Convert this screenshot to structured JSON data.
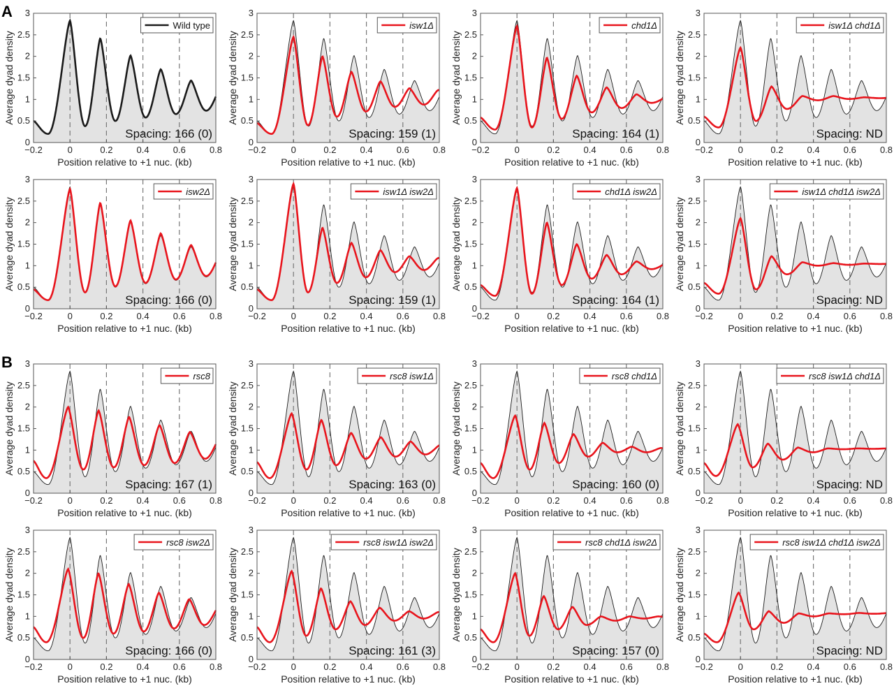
{
  "figure": {
    "letters": [
      "A",
      "B"
    ]
  },
  "chart_data": {
    "type": "line",
    "xlabel": "Position relative to +1 nuc. (kb)",
    "ylabel": "Average dyad density",
    "xlim": [
      -0.2,
      0.8
    ],
    "ylim": [
      0,
      3
    ],
    "xticks": [
      -0.2,
      0,
      0.2,
      0.4,
      0.6,
      0.8
    ],
    "xtick_labels": [
      "−0.2",
      "0",
      "0.2",
      "0.4",
      "0.6",
      "0.8"
    ],
    "yticks": [
      0,
      0.5,
      1,
      1.5,
      2,
      2.5,
      3
    ],
    "ytick_labels": [
      "0",
      "0.5",
      "1",
      "1.5",
      "2",
      "2.5",
      "3"
    ],
    "reference_lines_kb": [
      0,
      0.2,
      0.4,
      0.6
    ],
    "colors": {
      "wild_type": "#1a1a1a",
      "mutant": "#e8141c",
      "fill": "#e3e3e3"
    },
    "wild_type": {
      "label": "Wild type",
      "p0": 0,
      "spacing": 0.166,
      "start": 0.5,
      "min": 0.2,
      "peaks": [
        2.83,
        2.42,
        2.02,
        1.7,
        1.44,
        1.3
      ],
      "troughs": [
        0.38,
        0.5,
        0.58,
        0.66,
        0.74,
        0.8
      ]
    },
    "panels": [
      {
        "section": "A",
        "label": "Wild type",
        "spacing_text": "Spacing: 166 (0)",
        "wild_type_only": true
      },
      {
        "section": "A",
        "label": "isw1Δ",
        "spacing_text": "Spacing: 159 (1)",
        "p0": 0,
        "spacing": 0.159,
        "start": 0.45,
        "min": 0.2,
        "peaks": [
          2.45,
          2.0,
          1.64,
          1.42,
          1.26,
          1.22
        ],
        "troughs": [
          0.4,
          0.6,
          0.72,
          0.83,
          0.88,
          0.9
        ]
      },
      {
        "section": "A",
        "label": "chd1Δ",
        "spacing_text": "Spacing: 164 (1)",
        "p0": 0,
        "spacing": 0.164,
        "start": 0.58,
        "min": 0.3,
        "peaks": [
          2.7,
          1.97,
          1.55,
          1.28,
          1.12,
          1.05
        ],
        "troughs": [
          0.35,
          0.55,
          0.7,
          0.8,
          0.92,
          0.95
        ]
      },
      {
        "section": "A",
        "label": "isw1Δ chd1Δ",
        "spacing_text": "Spacing: ND",
        "p0": 0,
        "spacing": 0.17,
        "start": 0.6,
        "min": 0.35,
        "peaks": [
          2.2,
          1.3,
          1.08,
          1.08,
          1.05,
          1.05
        ],
        "troughs": [
          0.5,
          0.78,
          0.98,
          1.01,
          1.03,
          1.04
        ]
      },
      {
        "section": "A",
        "label": "isw2Δ",
        "spacing_text": "Spacing: 166 (0)",
        "p0": 0,
        "spacing": 0.166,
        "start": 0.45,
        "min": 0.2,
        "peaks": [
          2.78,
          2.46,
          2.05,
          1.75,
          1.48,
          1.3
        ],
        "troughs": [
          0.38,
          0.52,
          0.6,
          0.68,
          0.76,
          0.8
        ]
      },
      {
        "section": "A",
        "label": "isw1Δ isw2Δ",
        "spacing_text": "Spacing: 159 (1)",
        "p0": 0,
        "spacing": 0.159,
        "start": 0.45,
        "min": 0.2,
        "peaks": [
          2.9,
          1.88,
          1.53,
          1.36,
          1.22,
          1.18
        ],
        "troughs": [
          0.38,
          0.6,
          0.73,
          0.85,
          0.9,
          0.92
        ]
      },
      {
        "section": "A",
        "label": "chd1Δ isw2Δ",
        "spacing_text": "Spacing: 164 (1)",
        "p0": 0,
        "spacing": 0.164,
        "start": 0.55,
        "min": 0.3,
        "peaks": [
          2.8,
          2.0,
          1.5,
          1.25,
          1.1,
          1.05
        ],
        "troughs": [
          0.35,
          0.55,
          0.7,
          0.8,
          0.92,
          0.95
        ]
      },
      {
        "section": "A",
        "label": "isw1Δ chd1Δ isw2Δ",
        "spacing_text": "Spacing: ND",
        "p0": 0,
        "spacing": 0.17,
        "start": 0.6,
        "min": 0.35,
        "peaks": [
          2.1,
          1.22,
          1.08,
          1.06,
          1.05,
          1.05
        ],
        "troughs": [
          0.45,
          0.8,
          1.0,
          1.02,
          1.04,
          1.05
        ]
      },
      {
        "section": "B",
        "label": "rsc8",
        "spacing_text": "Spacing: 167 (1)",
        "p0": -0.01,
        "spacing": 0.167,
        "start": 0.75,
        "min": 0.35,
        "peaks": [
          2.0,
          1.92,
          1.77,
          1.58,
          1.42,
          1.3
        ],
        "troughs": [
          0.55,
          0.6,
          0.65,
          0.7,
          0.8,
          0.85
        ]
      },
      {
        "section": "B",
        "label": "rsc8 isw1Δ",
        "spacing_text": "Spacing: 163 (0)",
        "p0": -0.01,
        "spacing": 0.163,
        "start": 0.72,
        "min": 0.35,
        "peaks": [
          1.85,
          1.7,
          1.4,
          1.3,
          1.2,
          1.12
        ],
        "troughs": [
          0.55,
          0.65,
          0.8,
          0.85,
          0.9,
          0.92
        ]
      },
      {
        "section": "B",
        "label": "rsc8 chd1Δ",
        "spacing_text": "Spacing: 160 (0)",
        "p0": -0.01,
        "spacing": 0.16,
        "start": 0.7,
        "min": 0.35,
        "peaks": [
          1.8,
          1.63,
          1.37,
          1.17,
          1.08,
          1.05
        ],
        "troughs": [
          0.55,
          0.7,
          0.85,
          0.95,
          0.95,
          1.0
        ]
      },
      {
        "section": "B",
        "label": "rsc8 isw1Δ chd1Δ",
        "spacing_text": "Spacing: ND",
        "p0": -0.015,
        "spacing": 0.165,
        "start": 0.7,
        "min": 0.4,
        "peaks": [
          1.6,
          1.15,
          1.06,
          1.04,
          1.04,
          1.04
        ],
        "troughs": [
          0.6,
          0.78,
          0.95,
          1.02,
          1.03,
          1.03
        ]
      },
      {
        "section": "B",
        "label": "rsc8 isw2Δ",
        "spacing_text": "Spacing: 166 (0)",
        "p0": -0.01,
        "spacing": 0.166,
        "start": 0.75,
        "min": 0.4,
        "peaks": [
          2.1,
          2.0,
          1.75,
          1.55,
          1.4,
          1.25
        ],
        "troughs": [
          0.5,
          0.6,
          0.65,
          0.72,
          0.8,
          0.85
        ]
      },
      {
        "section": "B",
        "label": "rsc8 isw1Δ isw2Δ",
        "spacing_text": "Spacing: 161 (3)",
        "p0": -0.01,
        "spacing": 0.161,
        "start": 0.75,
        "min": 0.4,
        "peaks": [
          2.05,
          1.65,
          1.35,
          1.2,
          1.12,
          1.1
        ],
        "troughs": [
          0.55,
          0.7,
          0.8,
          0.9,
          0.95,
          0.98
        ]
      },
      {
        "section": "B",
        "label": "rsc8 chd1Δ isw2Δ",
        "spacing_text": "Spacing: 157 (0)",
        "p0": -0.01,
        "spacing": 0.157,
        "start": 0.7,
        "min": 0.4,
        "peaks": [
          2.0,
          1.47,
          1.22,
          1.0,
          1.0,
          1.0
        ],
        "troughs": [
          0.55,
          0.7,
          0.8,
          0.9,
          0.95,
          0.97
        ]
      },
      {
        "section": "B",
        "label": "rsc8 isw1Δ chd1Δ isw2Δ",
        "spacing_text": "Spacing: ND",
        "p0": -0.01,
        "spacing": 0.165,
        "start": 0.6,
        "min": 0.4,
        "peaks": [
          1.55,
          1.12,
          1.07,
          1.07,
          1.08,
          1.08
        ],
        "troughs": [
          0.7,
          0.85,
          1.0,
          1.05,
          1.06,
          1.07
        ]
      }
    ]
  }
}
